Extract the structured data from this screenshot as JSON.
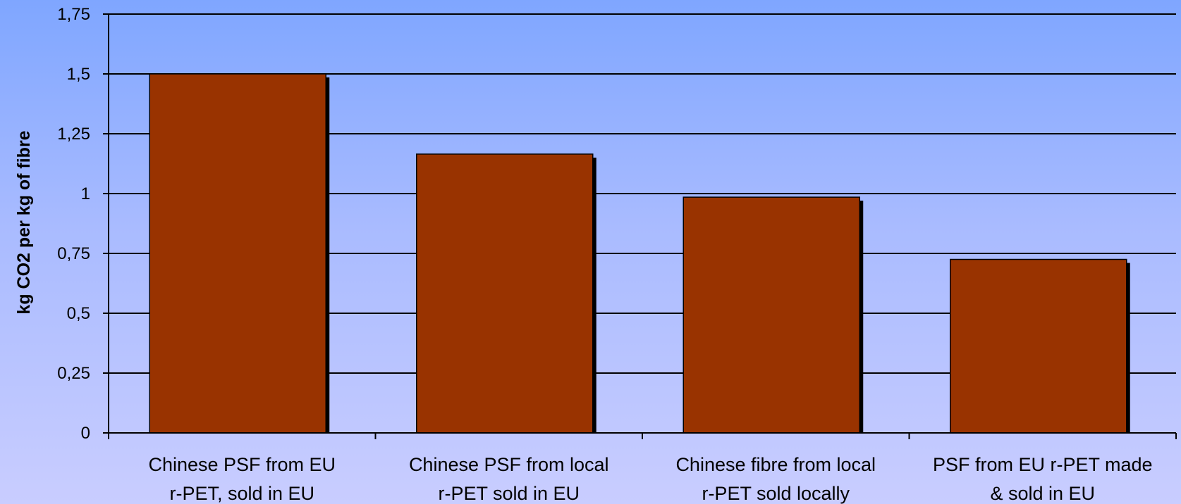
{
  "chart_data": {
    "type": "bar",
    "title": "",
    "xlabel": "",
    "ylabel": "kg CO2 per kg of fibre",
    "ylim": [
      0,
      1.75
    ],
    "yticks": [
      "0",
      "0,25",
      "0,5",
      "0,75",
      "1",
      "1,25",
      "1,5",
      "1,75"
    ],
    "categories": [
      [
        "Chinese PSF from EU",
        "r-PET, sold in EU"
      ],
      [
        "Chinese PSF from local",
        "r-PET sold in EU"
      ],
      [
        "Chinese fibre from local",
        "r-PET sold locally"
      ],
      [
        "PSF from EU r-PET made",
        "& sold in EU"
      ]
    ],
    "values": [
      1.5,
      1.165,
      0.985,
      0.725
    ],
    "grid": true,
    "legend": "none",
    "colors": {
      "bar": "#993300",
      "bar_shadow": "#000000",
      "gridline": "#000000",
      "axis": "#000000"
    }
  }
}
